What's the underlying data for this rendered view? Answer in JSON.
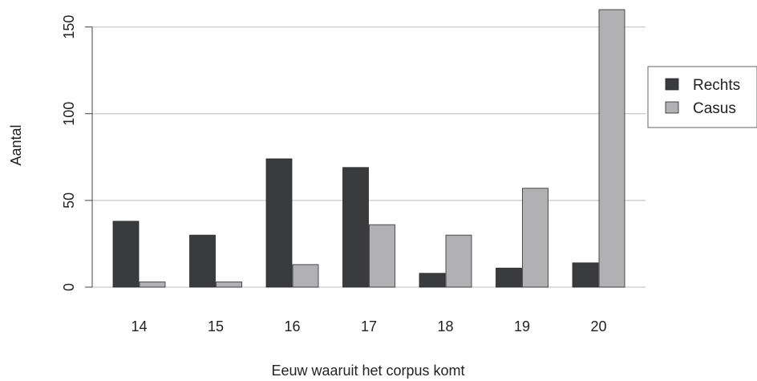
{
  "chart_data": {
    "type": "bar",
    "categories": [
      "14",
      "15",
      "16",
      "17",
      "18",
      "19",
      "20"
    ],
    "series": [
      {
        "name": "Rechts",
        "values": [
          38,
          30,
          74,
          69,
          8,
          11,
          14
        ],
        "color": "#3a3b3d"
      },
      {
        "name": "Casus",
        "values": [
          3,
          3,
          13,
          36,
          30,
          57,
          160
        ],
        "color": "#b1b1b3"
      }
    ],
    "title": "",
    "xlabel": "Eeuw waaruit het corpus komt",
    "ylabel": "Aantal",
    "ylim": [
      0,
      160
    ],
    "yticks": [
      "0",
      "50",
      "100",
      "150"
    ],
    "grid": true,
    "legend_position": "right"
  }
}
